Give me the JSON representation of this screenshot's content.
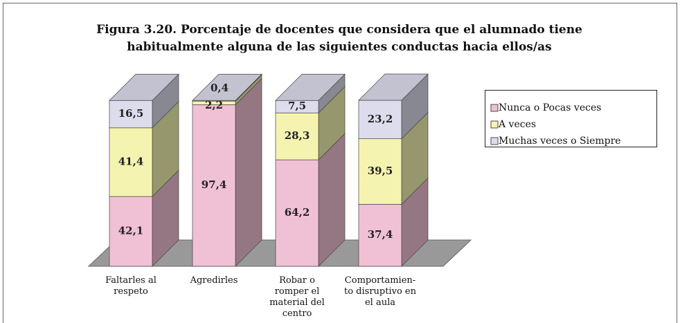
{
  "chart_data": {
    "type": "stacked-bar-3d",
    "title": "Figura 3.20. Porcentaje de docentes que considera que el alumnado tiene\nhabitualmente alguna de las siguientes conductas hacia ellos/as",
    "categories": [
      "Faltarles al\nrespeto",
      "Agredirles",
      "Robar o\nromper el\nmaterial del\ncentro",
      "Comportamien-\nto disruptivo en\nel aula"
    ],
    "series": [
      {
        "name": "Nunca o Pocas veces",
        "color": "#f0c0d4",
        "values": [
          42.1,
          97.4,
          64.2,
          37.4
        ],
        "value_labels": [
          "42,1",
          "97,4",
          "64,2",
          "37,4"
        ]
      },
      {
        "name": "A veces",
        "color": "#f4f4b0",
        "values": [
          41.4,
          2.2,
          28.3,
          39.5
        ],
        "value_labels": [
          "41,4",
          "2,2",
          "28,3",
          "39,5"
        ]
      },
      {
        "name": "Muchas veces o Siempre",
        "color": "#dcdcec",
        "values": [
          16.5,
          0.4,
          7.5,
          23.2
        ],
        "value_labels": [
          "16,5",
          "0,4",
          "7,5",
          "23,2"
        ]
      }
    ],
    "legend": "right"
  }
}
